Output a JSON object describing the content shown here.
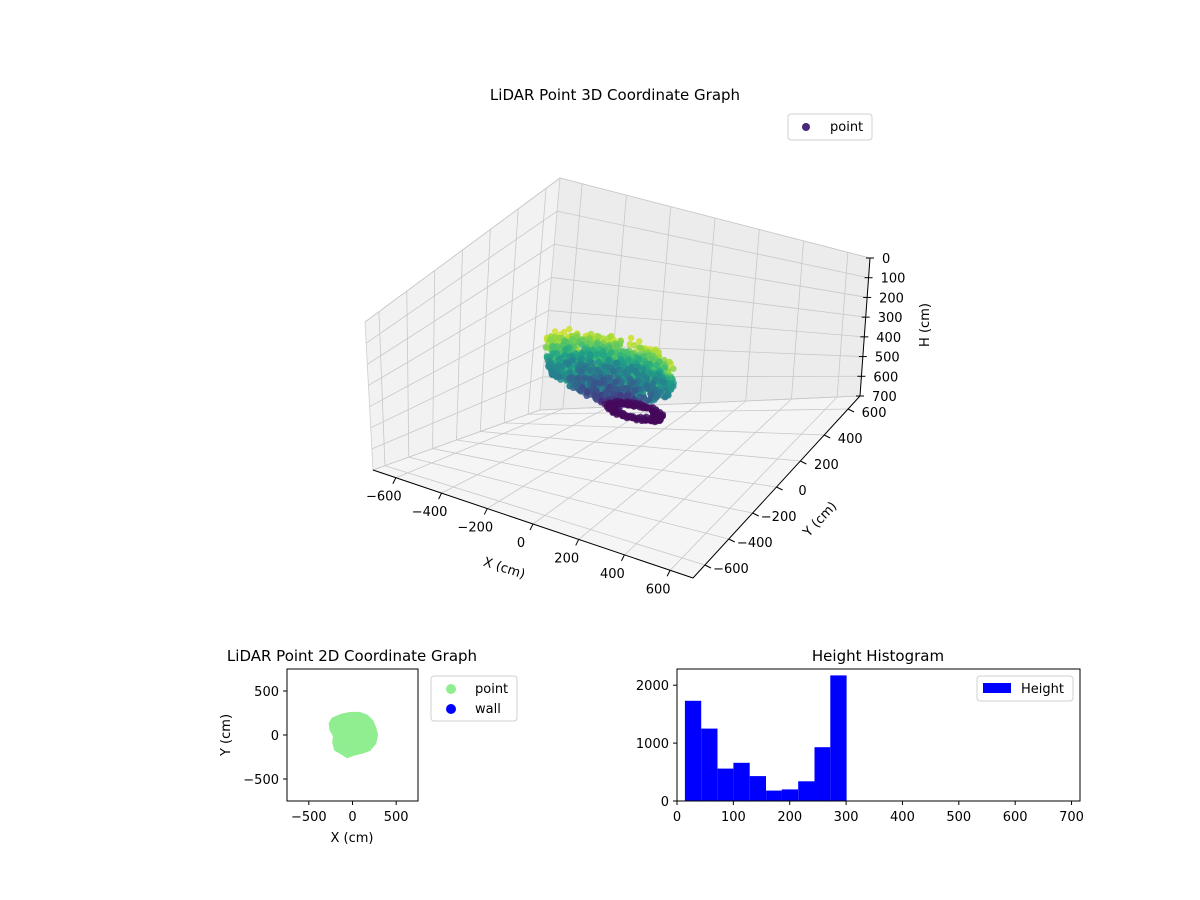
{
  "chart_data": [
    {
      "type": "scatter",
      "projection": "3d",
      "title": "LiDAR Point 3D Coordinate Graph",
      "xlabel": "X (cm)",
      "ylabel": "Y (cm)",
      "zlabel": "H (cm)",
      "xlim": [
        -700,
        700
      ],
      "ylim": [
        -700,
        700
      ],
      "zlim": [
        700,
        0
      ],
      "z_axis_inverted": true,
      "xticks": [
        "−600",
        "−400",
        "−200",
        "0",
        "200",
        "400",
        "600"
      ],
      "yticks": [
        "−600",
        "−400",
        "−200",
        "0",
        "200",
        "400",
        "600"
      ],
      "zticks": [
        "0",
        "100",
        "200",
        "300",
        "400",
        "500",
        "600",
        "700"
      ],
      "grid": true,
      "colormap": "viridis",
      "legend": {
        "placement": "top-right",
        "entries": [
          {
            "label": "point",
            "color": "#482878"
          }
        ]
      },
      "cloud": {
        "shape": "roughly circular blob",
        "x_range": [
          -250,
          250
        ],
        "y_range": [
          -250,
          250
        ],
        "height_range": [
          20,
          300
        ],
        "ring": {
          "height": 280,
          "radius": 110,
          "note": "dense ring at top of cloud"
        }
      }
    },
    {
      "type": "scatter",
      "title": "LiDAR Point 2D Coordinate Graph",
      "xlabel": "X (cm)",
      "ylabel": "Y (cm)",
      "xlim": [
        -750,
        750
      ],
      "ylim": [
        -750,
        750
      ],
      "xticks": [
        "−500",
        "0",
        "500"
      ],
      "yticks": [
        "−500",
        "0",
        "500"
      ],
      "legend": {
        "placement": "outside right",
        "entries": [
          {
            "label": "point",
            "color": "#90ee90"
          },
          {
            "label": "wall",
            "color": "#0000ff"
          }
        ]
      },
      "series": [
        {
          "name": "point",
          "color": "#90ee90",
          "outline": [
            [
              -220,
              180
            ],
            [
              -120,
              220
            ],
            [
              -20,
              240
            ],
            [
              80,
              240
            ],
            [
              160,
              210
            ],
            [
              220,
              150
            ],
            [
              250,
              80
            ],
            [
              270,
              0
            ],
            [
              250,
              -90
            ],
            [
              190,
              -160
            ],
            [
              110,
              -190
            ],
            [
              20,
              -210
            ],
            [
              -60,
              -240
            ],
            [
              -120,
              -200
            ],
            [
              -190,
              -160
            ],
            [
              -210,
              -80
            ],
            [
              -200,
              -10
            ],
            [
              -240,
              60
            ],
            [
              -250,
              130
            ]
          ]
        },
        {
          "name": "wall",
          "color": "#0000ff",
          "points": []
        }
      ]
    },
    {
      "type": "bar",
      "subtype": "histogram",
      "title": "Height Histogram",
      "xlabel": "",
      "ylabel": "",
      "xlim": [
        0,
        715
      ],
      "ylim": [
        0,
        2280
      ],
      "xticks": [
        "0",
        "100",
        "200",
        "300",
        "400",
        "500",
        "600",
        "700"
      ],
      "yticks": [
        "0",
        "1000",
        "2000"
      ],
      "legend": {
        "placement": "top-right",
        "entries": [
          {
            "label": "Height",
            "color": "#0000ff"
          }
        ]
      },
      "color": "#0000ff",
      "bin_edges": [
        14,
        43,
        72,
        100,
        129,
        158,
        186,
        215,
        244,
        272,
        301
      ],
      "values": [
        1730,
        1250,
        560,
        660,
        430,
        180,
        200,
        340,
        930,
        2170
      ]
    }
  ]
}
